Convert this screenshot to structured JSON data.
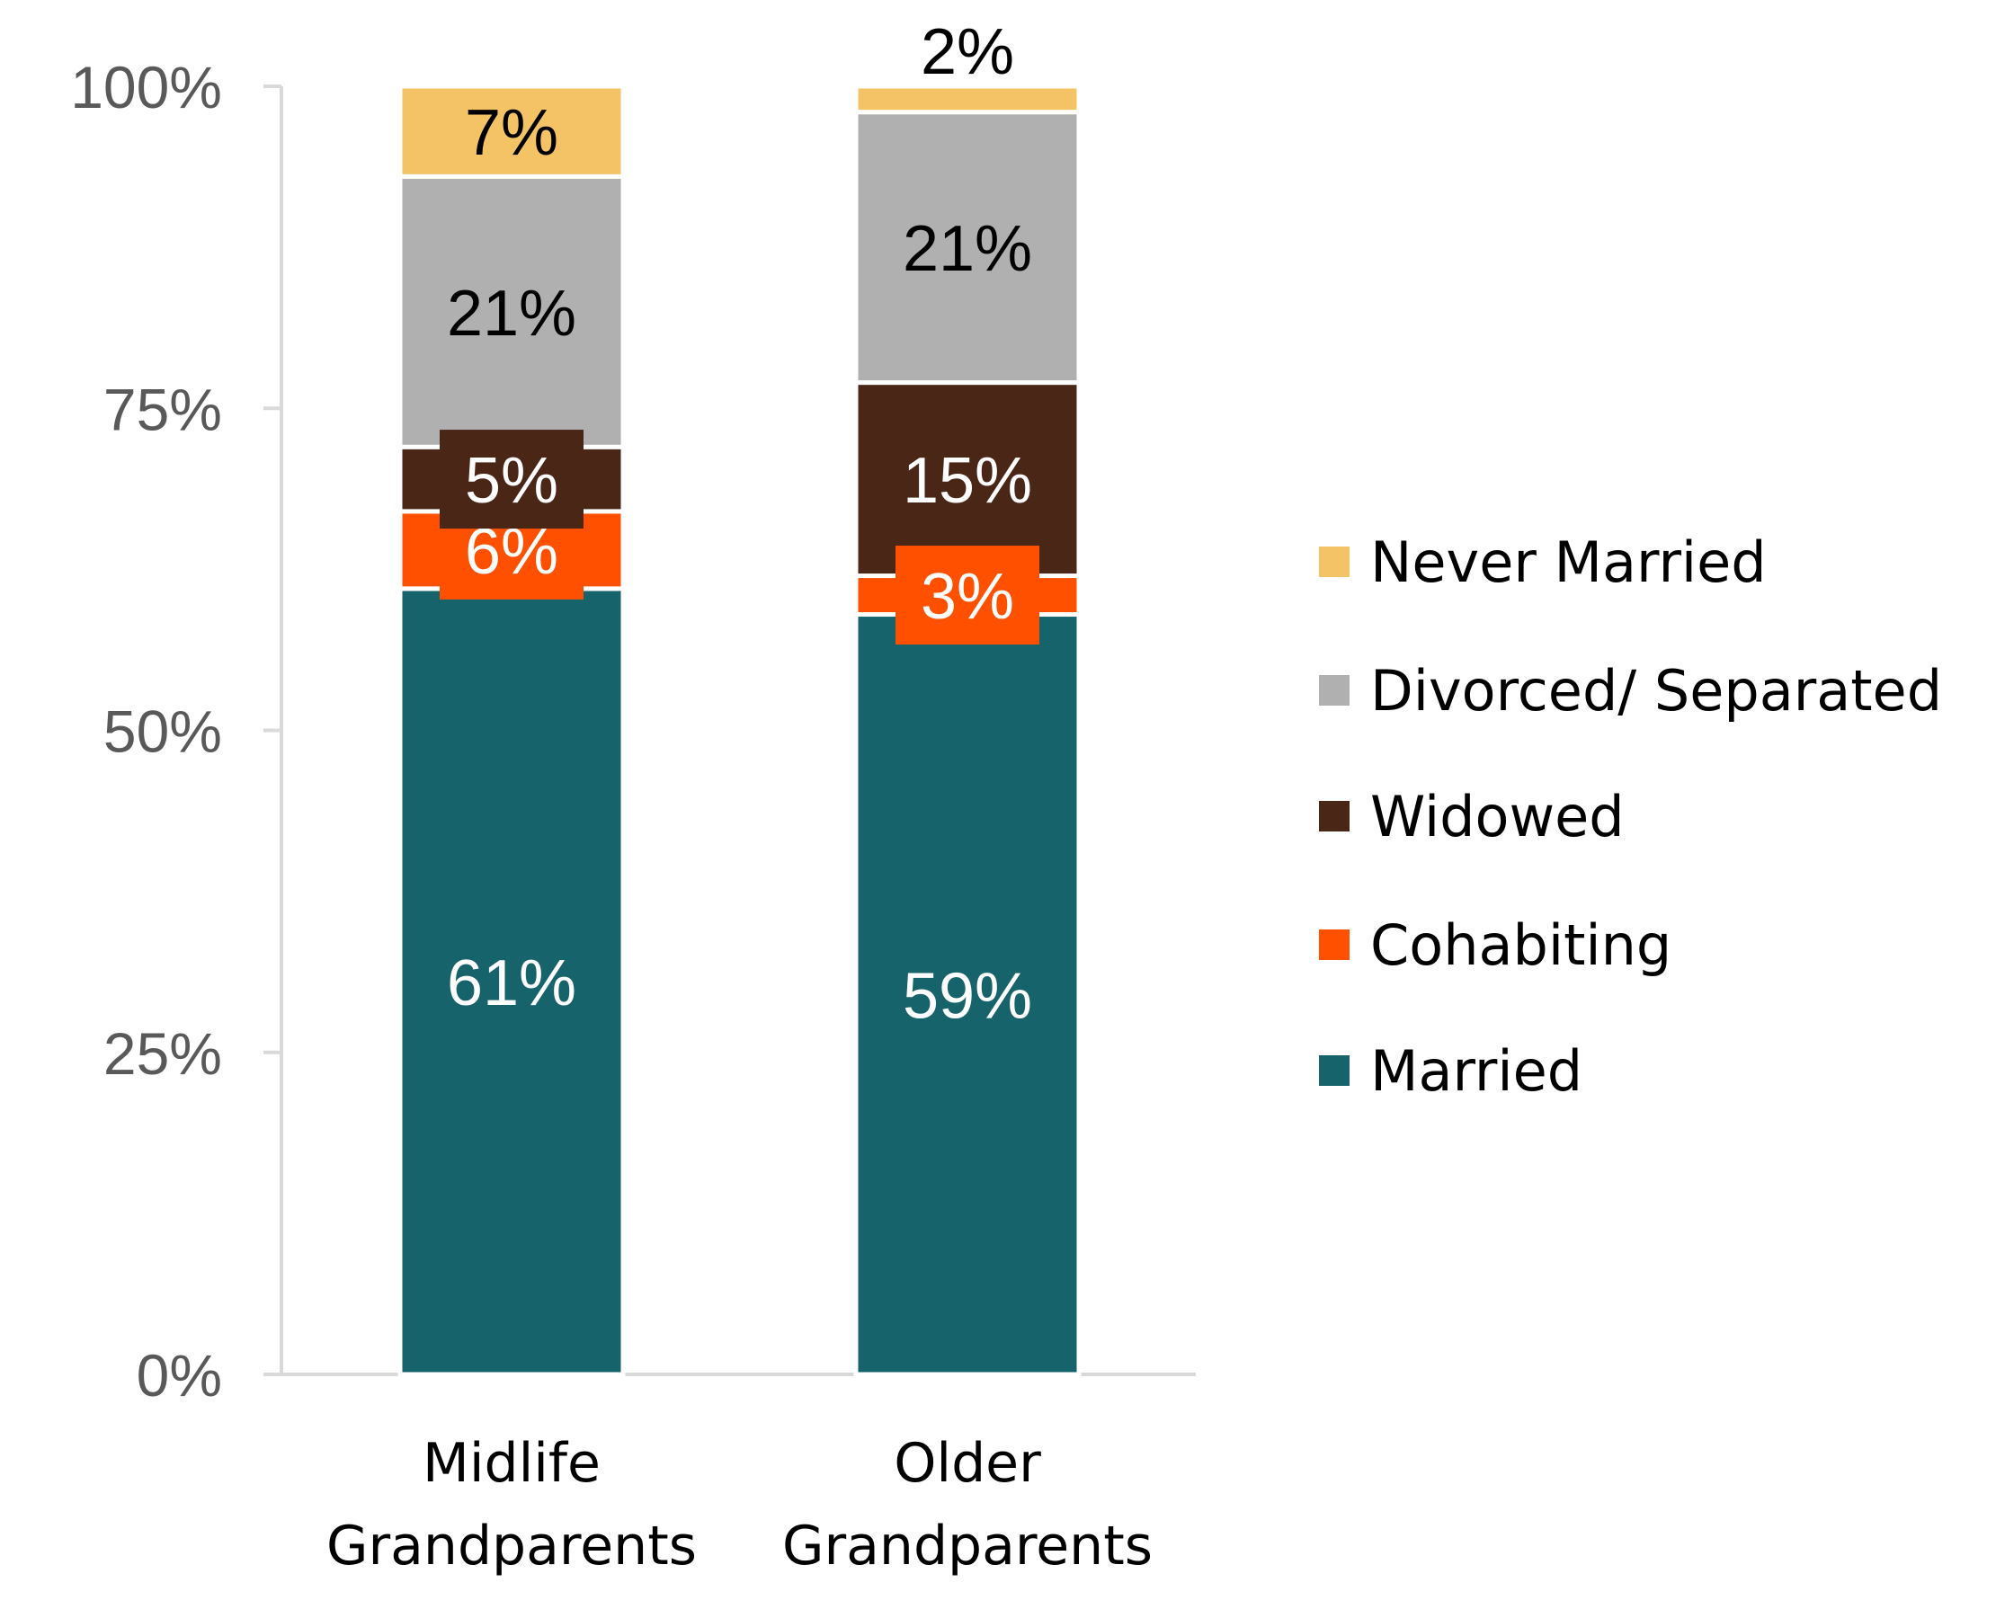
{
  "chart_data": {
    "type": "bar",
    "stacked": true,
    "categories": [
      "Midlife Grandparents",
      "Older Grandparents"
    ],
    "category_lines": [
      [
        "Midlife",
        "Grandparents"
      ],
      [
        "Older",
        "Grandparents"
      ]
    ],
    "series": [
      {
        "name": "Married",
        "values": [
          61,
          59
        ],
        "labels": [
          "61%",
          "59%"
        ],
        "color": "#17636B",
        "label_color": "#FFFFFF"
      },
      {
        "name": "Cohabiting",
        "values": [
          6,
          3
        ],
        "labels": [
          "6%",
          "3%"
        ],
        "color": "#FF5000",
        "label_color": "#FFFFFF"
      },
      {
        "name": "Widowed",
        "values": [
          5,
          15
        ],
        "labels": [
          "5%",
          "15%"
        ],
        "color": "#4A2617",
        "label_color": "#FFFFFF"
      },
      {
        "name": "Divorced/ Separated",
        "values": [
          21,
          21
        ],
        "labels": [
          "21%",
          "21%"
        ],
        "color": "#B0B0B0",
        "label_color": "#000000"
      },
      {
        "name": "Never Married",
        "values": [
          7,
          2
        ],
        "labels": [
          "7%",
          "2%"
        ],
        "color": "#F4C366",
        "label_color": "#000000"
      }
    ],
    "ylim": [
      0,
      100
    ],
    "yticks": [
      "0%",
      "25%",
      "50%",
      "75%",
      "100%"
    ],
    "ytick_values": [
      0,
      25,
      50,
      75,
      100
    ],
    "legend_order": [
      "Never Married",
      "Divorced/ Separated",
      "Widowed",
      "Cohabiting",
      "Married"
    ],
    "legend_position": "right",
    "grid": false,
    "title": "",
    "xlabel": "",
    "ylabel": ""
  }
}
